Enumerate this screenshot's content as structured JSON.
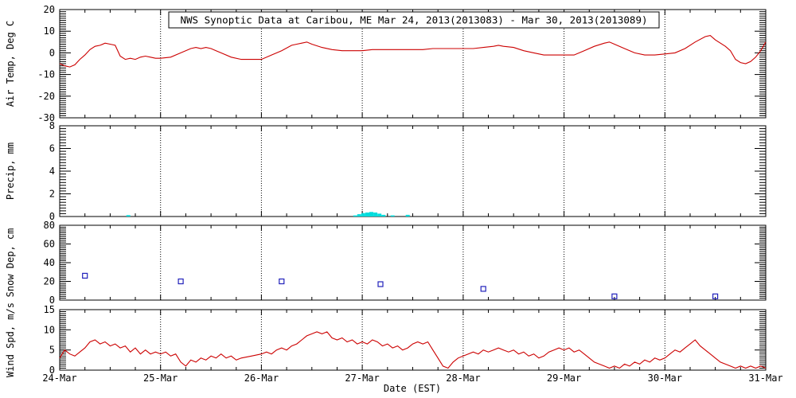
{
  "chart_data": {
    "type": "line",
    "title": "NWS Synoptic Data at Caribou, ME   Mar 24, 2013(2013083) - Mar 30, 2013(2013089)",
    "xlabel": "Date (EST)",
    "x_range": [
      24,
      31
    ],
    "x_ticks": [
      "24-Mar",
      "25-Mar",
      "26-Mar",
      "27-Mar",
      "28-Mar",
      "29-Mar",
      "30-Mar",
      "31-Mar"
    ],
    "grid": "dotted-vertical-at-days",
    "legend": "none",
    "axis_color": "#000000",
    "background": "#ffffff",
    "panels": [
      {
        "name": "air_temp",
        "ylabel": "Air Temp, Deg C",
        "ylim": [
          -30,
          20
        ],
        "yticks": [
          20,
          10,
          0,
          -10,
          -20,
          -30
        ],
        "yminor": 1,
        "type": "line",
        "color": "#cc0000",
        "x": [
          24.0,
          24.05,
          24.1,
          24.15,
          24.2,
          24.25,
          24.3,
          24.35,
          24.4,
          24.45,
          24.5,
          24.55,
          24.6,
          24.65,
          24.7,
          24.75,
          24.8,
          24.85,
          24.9,
          24.95,
          25.0,
          25.1,
          25.2,
          25.3,
          25.35,
          25.4,
          25.45,
          25.5,
          25.55,
          25.6,
          25.7,
          25.8,
          25.9,
          26.0,
          26.1,
          26.2,
          26.3,
          26.35,
          26.4,
          26.45,
          26.5,
          26.6,
          26.7,
          26.8,
          26.9,
          27.0,
          27.1,
          27.2,
          27.3,
          27.4,
          27.5,
          27.6,
          27.7,
          27.8,
          27.9,
          28.0,
          28.1,
          28.2,
          28.3,
          28.35,
          28.4,
          28.5,
          28.6,
          28.7,
          28.8,
          28.9,
          29.0,
          29.1,
          29.2,
          29.3,
          29.4,
          29.45,
          29.5,
          29.6,
          29.7,
          29.8,
          29.9,
          30.0,
          30.1,
          30.2,
          30.3,
          30.4,
          30.45,
          30.5,
          30.6,
          30.65,
          30.7,
          30.75,
          30.8,
          30.85,
          30.9,
          30.95,
          31.0
        ],
        "y": [
          -5,
          -6,
          -6.5,
          -5.5,
          -3,
          -1,
          1.5,
          3,
          3.5,
          4.5,
          4,
          3.5,
          -1.5,
          -3,
          -2.5,
          -3,
          -2,
          -1.5,
          -2,
          -2.5,
          -2.5,
          -2,
          0,
          2,
          2.5,
          2,
          2.5,
          2,
          1,
          0,
          -2,
          -3,
          -3,
          -3,
          -1,
          1,
          3.5,
          4,
          4.5,
          5,
          4,
          2.5,
          1.5,
          1,
          1,
          1,
          1.5,
          1.5,
          1.5,
          1.5,
          1.5,
          1.5,
          2,
          2,
          2,
          2,
          2,
          2.5,
          3,
          3.5,
          3,
          2.5,
          1,
          0,
          -1,
          -1,
          -1,
          -1,
          1,
          3,
          4.5,
          5,
          4,
          2,
          0,
          -1,
          -1,
          -0.5,
          0,
          2,
          5,
          7.5,
          8,
          6,
          3,
          1,
          -3,
          -4.5,
          -5,
          -4,
          -2,
          1,
          5
        ]
      },
      {
        "name": "precip",
        "ylabel": "Precip, mm",
        "ylim": [
          0,
          8
        ],
        "yticks": [
          8,
          6,
          4,
          2,
          0
        ],
        "yminor": 0.25,
        "type": "bar",
        "color": "#00dddd",
        "x": [
          24.68,
          26.93,
          26.97,
          27.01,
          27.05,
          27.09,
          27.13,
          27.17,
          27.21,
          27.3,
          27.45
        ],
        "y": [
          0.12,
          0.1,
          0.2,
          0.3,
          0.35,
          0.4,
          0.35,
          0.25,
          0.15,
          0.1,
          0.15
        ]
      },
      {
        "name": "snow_depth",
        "ylabel": "Snow Dep, cm",
        "ylim": [
          0,
          80
        ],
        "yticks": [
          80,
          60,
          40,
          20,
          0
        ],
        "yminor": 2,
        "type": "scatter",
        "color": "#2222bb",
        "x": [
          24.25,
          25.2,
          26.2,
          27.18,
          28.2,
          29.5,
          30.5
        ],
        "y": [
          26,
          20,
          20,
          17,
          12,
          4,
          4
        ]
      },
      {
        "name": "wind_speed",
        "ylabel": "Wind Spd, m/s",
        "ylim": [
          0,
          15
        ],
        "yticks": [
          15,
          10,
          5,
          0
        ],
        "yminor": 0.5,
        "type": "line",
        "color": "#cc0000",
        "x": [
          24.0,
          24.05,
          24.1,
          24.15,
          24.2,
          24.25,
          24.3,
          24.35,
          24.4,
          24.45,
          24.5,
          24.55,
          24.6,
          24.65,
          24.7,
          24.75,
          24.8,
          24.85,
          24.9,
          24.95,
          25.0,
          25.05,
          25.1,
          25.15,
          25.2,
          25.25,
          25.3,
          25.35,
          25.4,
          25.45,
          25.5,
          25.55,
          25.6,
          25.65,
          25.7,
          25.75,
          25.8,
          25.9,
          26.0,
          26.05,
          26.1,
          26.15,
          26.2,
          26.25,
          26.3,
          26.35,
          26.4,
          26.45,
          26.5,
          26.55,
          26.6,
          26.65,
          26.7,
          26.75,
          26.8,
          26.85,
          26.9,
          26.95,
          27.0,
          27.05,
          27.1,
          27.15,
          27.2,
          27.25,
          27.3,
          27.35,
          27.4,
          27.45,
          27.5,
          27.55,
          27.6,
          27.65,
          27.7,
          27.75,
          27.8,
          27.85,
          27.9,
          27.95,
          28.0,
          28.05,
          28.1,
          28.15,
          28.2,
          28.25,
          28.3,
          28.35,
          28.4,
          28.45,
          28.5,
          28.55,
          28.6,
          28.65,
          28.7,
          28.75,
          28.8,
          28.85,
          28.9,
          28.95,
          29.0,
          29.05,
          29.1,
          29.15,
          29.2,
          29.25,
          29.3,
          29.35,
          29.4,
          29.45,
          29.5,
          29.55,
          29.6,
          29.65,
          29.7,
          29.75,
          29.8,
          29.85,
          29.9,
          29.95,
          30.0,
          30.05,
          30.1,
          30.15,
          30.2,
          30.25,
          30.3,
          30.35,
          30.4,
          30.45,
          30.5,
          30.55,
          30.6,
          30.65,
          30.7,
          30.75,
          30.8,
          30.85,
          30.9,
          30.95,
          31.0
        ],
        "y": [
          3,
          5,
          4,
          3.5,
          4.5,
          5.5,
          7,
          7.5,
          6.5,
          7,
          6,
          6.5,
          5.5,
          6,
          4.5,
          5.5,
          4,
          5,
          4,
          4.5,
          4,
          4.5,
          3.5,
          4,
          2,
          1,
          2.5,
          2,
          3,
          2.5,
          3.5,
          3,
          4,
          3,
          3.5,
          2.5,
          3,
          3.5,
          4,
          4.5,
          4,
          5,
          5.5,
          5,
          6,
          6.5,
          7.5,
          8.5,
          9,
          9.5,
          9,
          9.5,
          8,
          7.5,
          8,
          7,
          7.5,
          6.5,
          7,
          6.5,
          7.5,
          7,
          6,
          6.5,
          5.5,
          6,
          5,
          5.5,
          6.5,
          7,
          6.5,
          7,
          5,
          3,
          1,
          0.5,
          2,
          3,
          3.5,
          4,
          4.5,
          4,
          5,
          4.5,
          5,
          5.5,
          5,
          4.5,
          5,
          4,
          4.5,
          3.5,
          4,
          3,
          3.5,
          4.5,
          5,
          5.5,
          5,
          5.5,
          4.5,
          5,
          4,
          3,
          2,
          1.5,
          1,
          0.5,
          1,
          0.5,
          1.5,
          1,
          2,
          1.5,
          2.5,
          2,
          3,
          2.5,
          3,
          4,
          5,
          4.5,
          5.5,
          6.5,
          7.5,
          6,
          5,
          4,
          3,
          2,
          1.5,
          1,
          0.5,
          1,
          0.5,
          1,
          0.5,
          1,
          0.5
        ]
      }
    ]
  }
}
